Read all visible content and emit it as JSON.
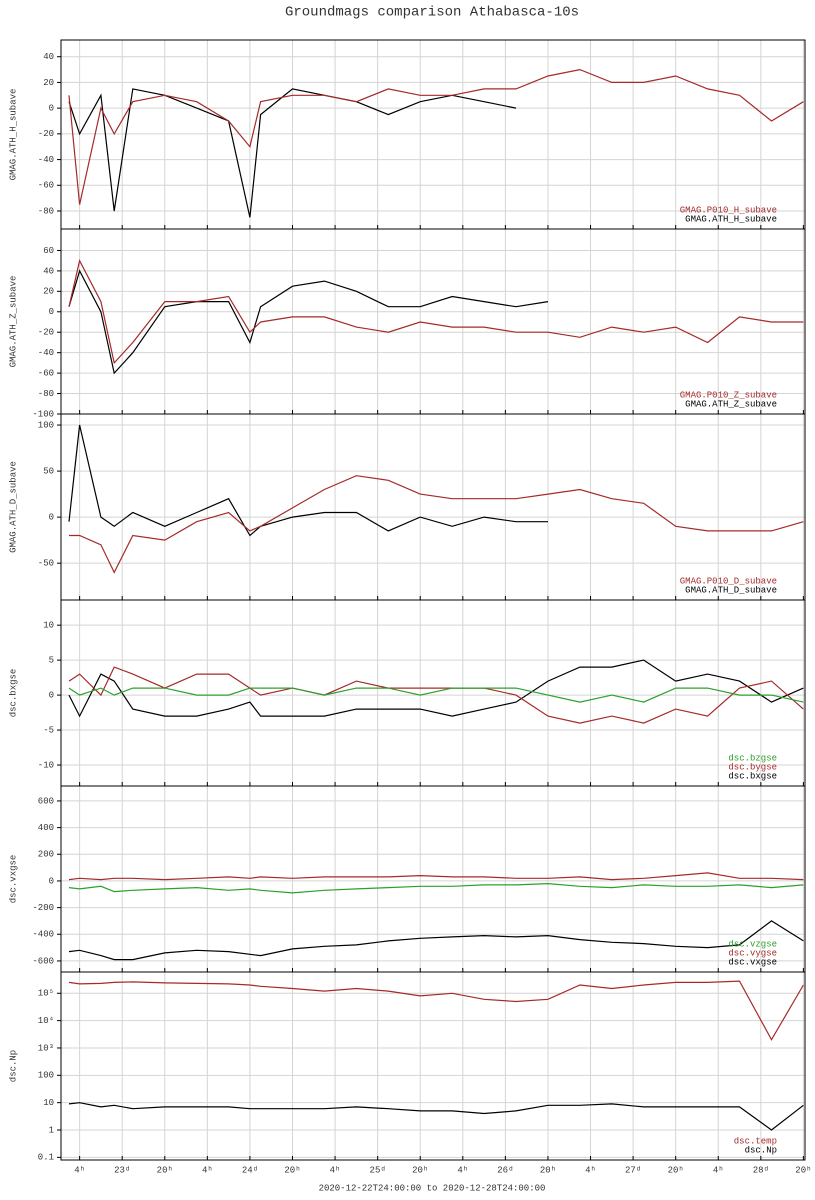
{
  "title": "Groundmags comparison Athabasca-10s",
  "xaxis": {
    "xlim": [
      -11.5,
      128.3
    ],
    "xticks": [
      {
        "value": -8,
        "label": "4ʰ"
      },
      {
        "value": 0,
        "label": "23ᵈ"
      },
      {
        "value": 8,
        "label": "20ʰ"
      },
      {
        "value": 16,
        "label": "4ʰ"
      },
      {
        "value": 24,
        "label": "24ᵈ"
      },
      {
        "value": 32,
        "label": "20ʰ"
      },
      {
        "value": 40,
        "label": "4ʰ"
      },
      {
        "value": 48,
        "label": "25ᵈ"
      },
      {
        "value": 56,
        "label": "20ʰ"
      },
      {
        "value": 64,
        "label": "4ʰ"
      },
      {
        "value": 72,
        "label": "26ᵈ"
      },
      {
        "value": 80,
        "label": "20ʰ"
      },
      {
        "value": 88,
        "label": "4ʰ"
      },
      {
        "value": 96,
        "label": "27ᵈ"
      },
      {
        "value": 104,
        "label": "20ʰ"
      },
      {
        "value": 112,
        "label": "4ʰ"
      },
      {
        "value": 120,
        "label": "28ᵈ"
      },
      {
        "value": 128,
        "label": "20ʰ"
      }
    ],
    "label": "2020-12-22T24:00:00 to 2020-12-28T24:00:00"
  },
  "chart_data": [
    {
      "type": "line",
      "ylabel": "GMAG.ATH_H_subave",
      "ylim": [
        -94,
        53
      ],
      "yticks": [
        40,
        20,
        0,
        -20,
        -40,
        -60,
        -80
      ],
      "grid": true,
      "legend": "lower right",
      "x": [
        -10,
        -8,
        -4,
        -1.5,
        2,
        8,
        14,
        20,
        24,
        26,
        32,
        38,
        44,
        50,
        56,
        62,
        68,
        74,
        80,
        86,
        92,
        98,
        104,
        110,
        116,
        122,
        128
      ],
      "series": [
        {
          "name": "GMAG.P010_H_subave",
          "color": "#a52a2a",
          "values": [
            10,
            -75,
            0,
            -20,
            5,
            10,
            5,
            -10,
            -30,
            5,
            10,
            10,
            5,
            15,
            10,
            10,
            15,
            15,
            25,
            30,
            20,
            20,
            25,
            15,
            10,
            -10,
            5
          ]
        },
        {
          "name": "GMAG.ATH_H_subave",
          "color": "#000000",
          "values": [
            5,
            -20,
            10,
            -80,
            15,
            10,
            0,
            -10,
            -85,
            -5,
            15,
            10,
            5,
            -5,
            5,
            10,
            5,
            0,
            null,
            null,
            null,
            null,
            null,
            null,
            null,
            null,
            null
          ]
        }
      ]
    },
    {
      "type": "line",
      "ylabel": "GMAG.ATH_Z_subave",
      "ylim": [
        -100,
        81
      ],
      "yticks": [
        60,
        40,
        20,
        0,
        -20,
        -40,
        -60,
        -80,
        -100
      ],
      "grid": true,
      "legend": "lower right",
      "x": [
        -10,
        -8,
        -4,
        -1.5,
        2,
        8,
        14,
        20,
        24,
        26,
        32,
        38,
        44,
        50,
        56,
        62,
        68,
        74,
        80,
        86,
        92,
        98,
        104,
        110,
        116,
        122,
        128
      ],
      "series": [
        {
          "name": "GMAG.P010_Z_subave",
          "color": "#a52a2a",
          "values": [
            5,
            50,
            10,
            -50,
            -30,
            10,
            10,
            15,
            -20,
            -10,
            -5,
            -5,
            -15,
            -20,
            -10,
            -15,
            -15,
            -20,
            -20,
            -25,
            -15,
            -20,
            -15,
            -30,
            -5,
            -10,
            -10
          ]
        },
        {
          "name": "GMAG.ATH_Z_subave",
          "color": "#000000",
          "values": [
            5,
            40,
            0,
            -60,
            -40,
            5,
            10,
            10,
            -30,
            5,
            25,
            30,
            20,
            5,
            5,
            15,
            10,
            5,
            10,
            null,
            null,
            null,
            null,
            null,
            null,
            null,
            null
          ]
        }
      ]
    },
    {
      "type": "line",
      "ylabel": "GMAG.ATH_D_subave",
      "ylim": [
        -90,
        112
      ],
      "yticks": [
        100,
        50,
        0,
        -50
      ],
      "grid": true,
      "legend": "lower right",
      "x": [
        -10,
        -8,
        -4,
        -1.5,
        2,
        8,
        14,
        20,
        24,
        26,
        32,
        38,
        44,
        50,
        56,
        62,
        68,
        74,
        80,
        86,
        92,
        98,
        104,
        110,
        116,
        122,
        128
      ],
      "series": [
        {
          "name": "GMAG.P010_D_subave",
          "color": "#a52a2a",
          "values": [
            -20,
            -20,
            -30,
            -60,
            -20,
            -25,
            -5,
            5,
            -15,
            -10,
            10,
            30,
            45,
            40,
            25,
            20,
            20,
            20,
            25,
            30,
            20,
            15,
            -10,
            -15,
            -15,
            -15,
            -5
          ]
        },
        {
          "name": "GMAG.ATH_D_subave",
          "color": "#000000",
          "values": [
            -5,
            100,
            0,
            -10,
            5,
            -10,
            5,
            20,
            -20,
            -10,
            0,
            5,
            5,
            -15,
            0,
            -10,
            0,
            -5,
            -5,
            null,
            null,
            null,
            null,
            null,
            null,
            null,
            null
          ]
        }
      ]
    },
    {
      "type": "line",
      "ylabel": "dsc.bxgse",
      "ylim": [
        -13,
        13.6
      ],
      "yticks": [
        10,
        5,
        0,
        -5,
        -10
      ],
      "grid": true,
      "legend": "lower right",
      "x": [
        -10,
        -8,
        -4,
        -1.5,
        2,
        8,
        14,
        20,
        24,
        26,
        32,
        38,
        44,
        50,
        56,
        62,
        68,
        74,
        80,
        86,
        92,
        98,
        104,
        110,
        116,
        122,
        128
      ],
      "series": [
        {
          "name": "dsc.bzgse",
          "color": "#2ca02c",
          "values": [
            1,
            0,
            1,
            0,
            1,
            1,
            0,
            0,
            1,
            1,
            1,
            0,
            1,
            1,
            0,
            1,
            1,
            1,
            0,
            -1,
            0,
            -1,
            1,
            1,
            0,
            0,
            -1
          ]
        },
        {
          "name": "dsc.bygse",
          "color": "#a52a2a",
          "values": [
            2,
            3,
            0,
            4,
            3,
            1,
            3,
            3,
            1,
            0,
            1,
            0,
            2,
            1,
            1,
            1,
            1,
            0,
            -3,
            -4,
            -3,
            -4,
            -2,
            -3,
            1,
            2,
            -2
          ]
        },
        {
          "name": "dsc.bxgse",
          "color": "#000000",
          "values": [
            0,
            -3,
            3,
            2,
            -2,
            -3,
            -3,
            -2,
            -1,
            -3,
            -3,
            -3,
            -2,
            -2,
            -2,
            -3,
            -2,
            -1,
            2,
            4,
            4,
            5,
            2,
            3,
            2,
            -1,
            1
          ]
        }
      ]
    },
    {
      "type": "line",
      "ylabel": "dsc.vxgse",
      "ylim": [
        -683,
        712
      ],
      "yticks": [
        600,
        400,
        200,
        0,
        -200,
        -400,
        -600
      ],
      "grid": true,
      "legend": "lower right",
      "x": [
        -10,
        -8,
        -4,
        -1.5,
        2,
        8,
        14,
        20,
        24,
        26,
        32,
        38,
        44,
        50,
        56,
        62,
        68,
        74,
        80,
        86,
        92,
        98,
        104,
        110,
        116,
        122,
        128
      ],
      "series": [
        {
          "name": "dsc.vzgse",
          "color": "#2ca02c",
          "values": [
            -50,
            -60,
            -40,
            -80,
            -70,
            -60,
            -50,
            -70,
            -60,
            -70,
            -90,
            -70,
            -60,
            -50,
            -40,
            -40,
            -30,
            -30,
            -20,
            -40,
            -50,
            -30,
            -40,
            -40,
            -30,
            -50,
            -30
          ]
        },
        {
          "name": "dsc.vygse",
          "color": "#a52a2a",
          "values": [
            10,
            20,
            10,
            20,
            20,
            10,
            20,
            30,
            20,
            30,
            20,
            30,
            30,
            30,
            40,
            30,
            30,
            20,
            20,
            30,
            10,
            20,
            40,
            60,
            20,
            20,
            10
          ]
        },
        {
          "name": "dsc.vxgse",
          "color": "#000000",
          "values": [
            -530,
            -520,
            -560,
            -590,
            -590,
            -540,
            -520,
            -530,
            -550,
            -560,
            -510,
            -490,
            -480,
            -450,
            -430,
            -420,
            -410,
            -420,
            -410,
            -440,
            -460,
            -470,
            -490,
            -500,
            -480,
            -300,
            -450
          ]
        }
      ]
    },
    {
      "type": "line",
      "ylabel": "dsc.Np",
      "ylog": true,
      "ylim": [
        0.08,
        600000
      ],
      "yticks": [
        0.1,
        1,
        10,
        100,
        {
          "value": 1000,
          "label": "10³"
        },
        {
          "value": 10000,
          "label": "10⁴"
        },
        {
          "value": 100000,
          "label": "10⁵"
        }
      ],
      "grid": true,
      "legend": "lower right",
      "x": [
        -10,
        -8,
        -4,
        -1.5,
        2,
        8,
        14,
        20,
        24,
        26,
        32,
        38,
        44,
        50,
        56,
        62,
        68,
        74,
        80,
        86,
        92,
        98,
        104,
        110,
        116,
        122,
        128
      ],
      "series": [
        {
          "name": "dsc.temp",
          "color": "#a52a2a",
          "values": [
            250000,
            220000,
            230000,
            250000,
            260000,
            240000,
            230000,
            220000,
            200000,
            180000,
            150000,
            120000,
            150000,
            120000,
            80000,
            100000,
            60000,
            50000,
            60000,
            200000,
            150000,
            200000,
            250000,
            250000,
            280000,
            2000,
            200000
          ]
        },
        {
          "name": "dsc.Np",
          "color": "#000000",
          "values": [
            9,
            10,
            7,
            8,
            6,
            7,
            7,
            7,
            6,
            6,
            6,
            6,
            7,
            6,
            5,
            5,
            4,
            5,
            8,
            8,
            9,
            7,
            7,
            7,
            7,
            1,
            8
          ]
        }
      ]
    }
  ]
}
